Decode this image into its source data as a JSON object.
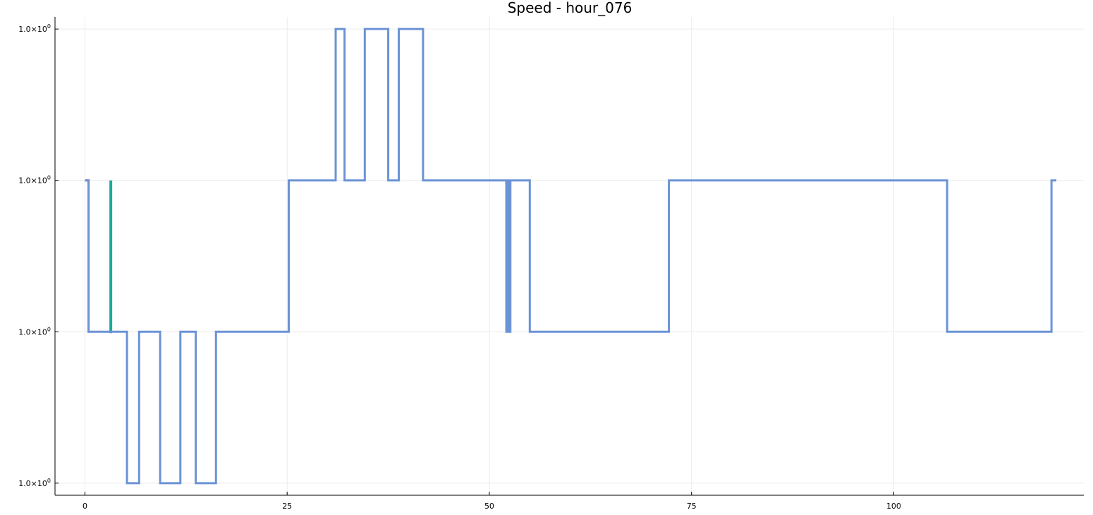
{
  "chart_data": {
    "type": "line",
    "title": "Speed - hour_076",
    "xlabel": "",
    "ylabel": "",
    "xlim": [
      -3.7,
      123.5
    ],
    "ylim": [
      -0.08,
      3.08
    ],
    "x_ticks": [
      0,
      25,
      50,
      75,
      100
    ],
    "x_tick_labels": [
      "0",
      "25",
      "50",
      "75",
      "100"
    ],
    "y_levels": [
      0,
      1,
      2,
      3
    ],
    "y_tick_labels": [
      "1.0×10⁰",
      "1.0×10⁰",
      "1.0×10⁰",
      "1.0×10⁰"
    ],
    "grid": true,
    "legend": false,
    "line_style": "step",
    "colors": {
      "series_1": "#e26f46",
      "series_2": "#1aab9a",
      "series_3": "#6b93d6"
    },
    "series": [
      {
        "color": "#e26f46",
        "points": [
          [
            0,
            2
          ],
          [
            0.45,
            2
          ],
          [
            0.45,
            1
          ],
          [
            0.5,
            1
          ]
        ]
      },
      {
        "color": "#1aab9a",
        "points": [
          [
            3.2,
            2
          ],
          [
            3.2,
            1
          ],
          [
            3.35,
            1
          ]
        ]
      },
      {
        "color": "#6b93d6",
        "points": [
          [
            0,
            2
          ],
          [
            0.45,
            2
          ],
          [
            0.45,
            1
          ],
          [
            5.2,
            1
          ],
          [
            5.2,
            0
          ],
          [
            6.7,
            0
          ],
          [
            6.7,
            1
          ],
          [
            9.3,
            1
          ],
          [
            9.3,
            0
          ],
          [
            11.8,
            0
          ],
          [
            11.8,
            1
          ],
          [
            13.7,
            1
          ],
          [
            13.7,
            0
          ],
          [
            16.2,
            0
          ],
          [
            16.2,
            1
          ],
          [
            25.2,
            1
          ],
          [
            25.2,
            2
          ],
          [
            31,
            2
          ],
          [
            31,
            3
          ],
          [
            32.1,
            3
          ],
          [
            32.1,
            2
          ],
          [
            34.6,
            2
          ],
          [
            34.6,
            3
          ],
          [
            37.5,
            3
          ],
          [
            37.5,
            2
          ],
          [
            38.8,
            2
          ],
          [
            38.8,
            3
          ],
          [
            41.8,
            3
          ],
          [
            41.8,
            2
          ],
          [
            52.1,
            2
          ],
          [
            52.1,
            1
          ],
          [
            52.3,
            1
          ],
          [
            52.3,
            2
          ],
          [
            52.4,
            2
          ],
          [
            52.4,
            1
          ],
          [
            52.6,
            1
          ],
          [
            52.6,
            2
          ],
          [
            55,
            2
          ],
          [
            55,
            1
          ],
          [
            72.2,
            1
          ],
          [
            72.2,
            2
          ],
          [
            106.6,
            2
          ],
          [
            106.6,
            1
          ],
          [
            119.5,
            1
          ],
          [
            119.5,
            2
          ],
          [
            120.1,
            2
          ]
        ]
      }
    ]
  }
}
